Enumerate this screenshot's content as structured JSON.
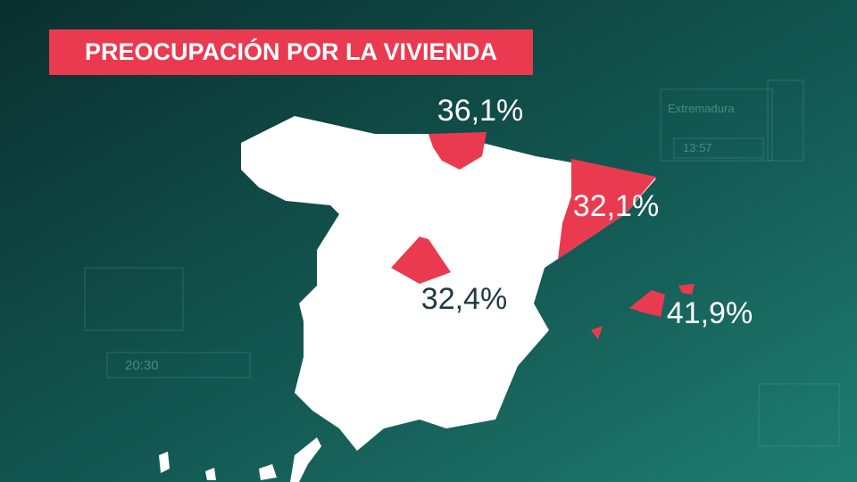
{
  "title": "PREOCUPACIÓN POR LA VIVIENDA",
  "regions": [
    {
      "label": "36,1%"
    },
    {
      "label": "32,1%"
    },
    {
      "label": "32,4%"
    },
    {
      "label": "41,9%"
    }
  ],
  "background": {
    "labels": [
      "Extremadura",
      "13:57",
      "20:30"
    ]
  }
}
